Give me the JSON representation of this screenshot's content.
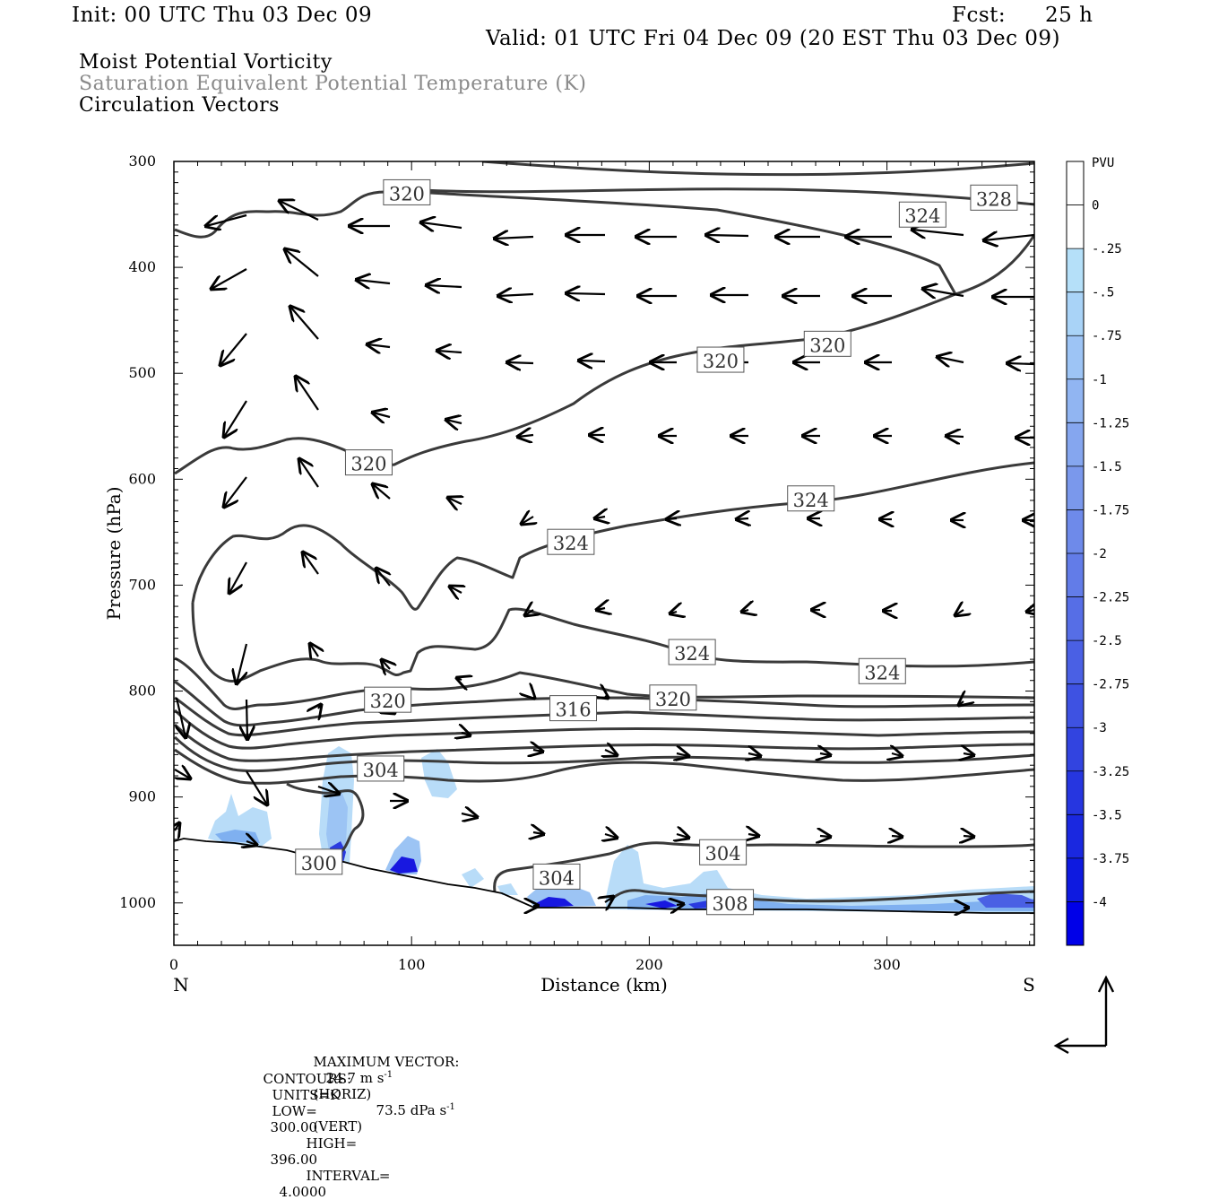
{
  "header": {
    "init": "Init: 00 UTC Thu 03 Dec 09",
    "fcst_label": "Fcst:",
    "fcst_value": "25 h",
    "valid": "Valid: 01 UTC Fri 04 Dec 09 (20 EST Thu 03 Dec 09)"
  },
  "fields": {
    "line1": "Moist Potential Vorticity",
    "line2": "Saturation Equivalent Potential Temperature (K)",
    "line3": "Circulation Vectors"
  },
  "footer": {
    "max_vector_label": "MAXIMUM VECTOR:",
    "horiz": "24.7 m s",
    "horiz_tag": "(HORIZ)",
    "vert": "73.5 dPa s",
    "vert_tag": "(VERT)",
    "exp": "-1",
    "contours_label": "CONTOURS:",
    "units": "UNITS=K",
    "low_label": "LOW=",
    "low": "300.00",
    "high_label": "HIGH=",
    "high": "396.00",
    "interval_label": "INTERVAL=",
    "interval": "4.0000"
  },
  "colors": {
    "contour": "#3a3a3a",
    "mpv_light": "#b8dcf8",
    "mpv_mid": "#7fb0f0",
    "mpv_dark": "#1010e0"
  },
  "chart_data": {
    "type": "cross-section",
    "xlabel": "Distance (km)",
    "ylabel": "Pressure (hPa)",
    "xlim": [
      0,
      362
    ],
    "ylim": [
      1040,
      300
    ],
    "x_ticks": [
      0,
      100,
      200,
      300
    ],
    "y_ticks": [
      300,
      400,
      500,
      600,
      700,
      800,
      900,
      1000
    ],
    "x_endpoints": {
      "left": "N",
      "right": "S"
    },
    "colorbar": {
      "unit": "PVU",
      "labels": [
        "0",
        "-.25",
        "-.5",
        "-.75",
        "-1",
        "-1.25",
        "-1.5",
        "-1.75",
        "-2",
        "-2.25",
        "-2.5",
        "-2.75",
        "-3",
        "-3.25",
        "-3.5",
        "-3.75",
        "-4"
      ],
      "colors": [
        "#ffffff",
        "#b5e0f9",
        "#a9d3f7",
        "#9dc4f5",
        "#91b5f2",
        "#85a6ef",
        "#7a98ec",
        "#6e8aea",
        "#627ce8",
        "#566ee6",
        "#4a60e4",
        "#3e52e2",
        "#3244e0",
        "#2636e0",
        "#1a28e0",
        "#0e1ae0",
        "#0000e8"
      ]
    },
    "contour_labels": [
      {
        "text": "320",
        "x": 98,
        "p": 330
      },
      {
        "text": "328",
        "x": 345,
        "p": 335
      },
      {
        "text": "324",
        "x": 315,
        "p": 351
      },
      {
        "text": "320",
        "x": 230,
        "p": 488
      },
      {
        "text": "320",
        "x": 275,
        "p": 473
      },
      {
        "text": "320",
        "x": 82,
        "p": 585
      },
      {
        "text": "324",
        "x": 268,
        "p": 619
      },
      {
        "text": "324",
        "x": 167,
        "p": 660
      },
      {
        "text": "324",
        "x": 218,
        "p": 764
      },
      {
        "text": "324",
        "x": 298,
        "p": 782
      },
      {
        "text": "320",
        "x": 90,
        "p": 809
      },
      {
        "text": "316",
        "x": 168,
        "p": 817
      },
      {
        "text": "320",
        "x": 210,
        "p": 807
      },
      {
        "text": "304",
        "x": 87,
        "p": 874
      },
      {
        "text": "300",
        "x": 61,
        "p": 962
      },
      {
        "text": "304",
        "x": 161,
        "p": 976
      },
      {
        "text": "304",
        "x": 231,
        "p": 953
      },
      {
        "text": "308",
        "x": 234,
        "p": 1000
      }
    ]
  }
}
